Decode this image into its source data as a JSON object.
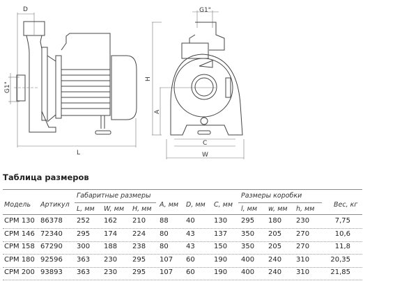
{
  "drawing": {
    "side_view_labels": {
      "d": "D",
      "g1": "G1\"",
      "l": "L"
    },
    "front_view_labels": {
      "g1": "G1\"",
      "h": "H",
      "a": "A",
      "c": "C",
      "w": "W"
    }
  },
  "table": {
    "title": "Таблица размеров",
    "headers": {
      "model": "Модель",
      "article": "Артикул",
      "overall_group": "Габаритные размеры",
      "L": "L, мм",
      "W": "W, мм",
      "H": "H, мм",
      "A": "A, мм",
      "D": "D, мм",
      "C": "C, мм",
      "box_group": "Размеры коробки",
      "l": "l, мм",
      "w": "w, мм",
      "h": "h, мм",
      "weight": "Вес, кг"
    },
    "rows": [
      [
        "CPM 130",
        "86378",
        "252",
        "162",
        "210",
        "88",
        "40",
        "130",
        "295",
        "180",
        "230",
        "7,75"
      ],
      [
        "CPM 146",
        "72340",
        "295",
        "174",
        "224",
        "80",
        "43",
        "137",
        "350",
        "205",
        "270",
        "10,6"
      ],
      [
        "CPM 158",
        "67290",
        "300",
        "188",
        "238",
        "80",
        "43",
        "150",
        "350",
        "205",
        "270",
        "11,8"
      ],
      [
        "CPM 180",
        "92596",
        "363",
        "230",
        "295",
        "107",
        "60",
        "190",
        "400",
        "240",
        "310",
        "20,35"
      ],
      [
        "CPM 200",
        "93893",
        "363",
        "230",
        "295",
        "107",
        "60",
        "190",
        "400",
        "240",
        "310",
        "21,85"
      ]
    ]
  }
}
